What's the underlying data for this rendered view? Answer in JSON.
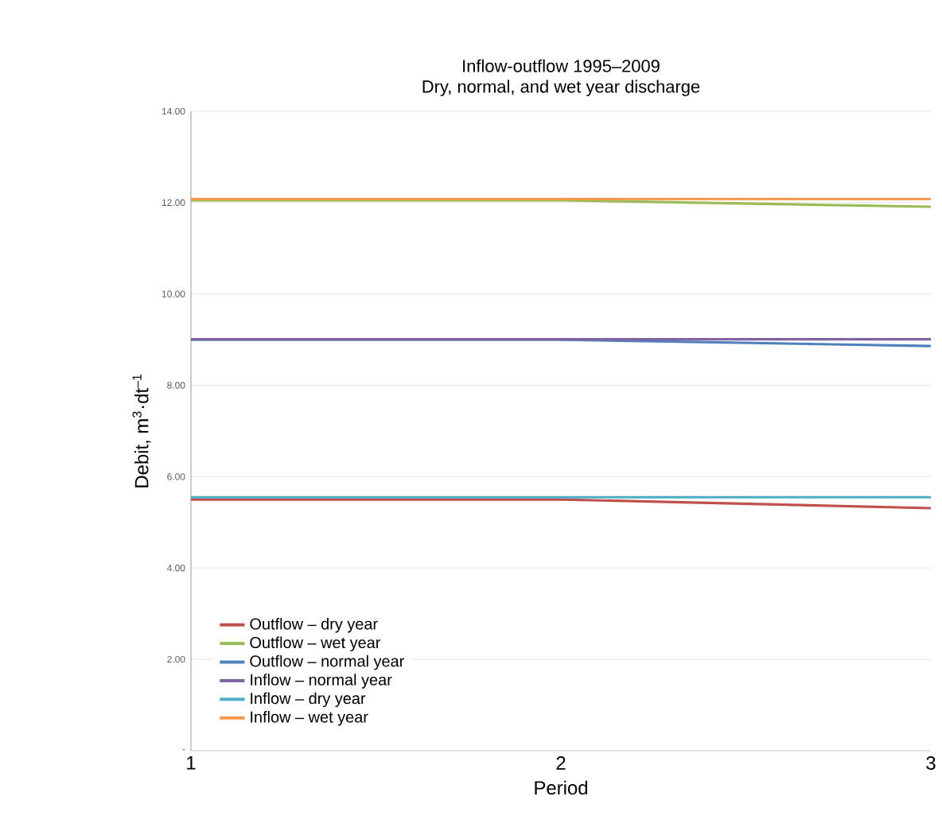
{
  "chart_data": {
    "type": "line",
    "title": "Inflow-outflow 1995–2009",
    "subtitle": "Dry, normal, and wet year discharge",
    "xlabel": "Period",
    "ylabel": "Debit, m$^{3}$·dt$^{–1}$",
    "x": [
      1,
      2,
      3
    ],
    "xlim": [
      1,
      3
    ],
    "xticks": [
      1,
      2,
      3
    ],
    "ylim": [
      0,
      14
    ],
    "yticks": [
      {
        "value": 0,
        "label": "-"
      },
      {
        "value": 2,
        "label": "2.00"
      },
      {
        "value": 4,
        "label": "4.00"
      },
      {
        "value": 6,
        "label": "6.00"
      },
      {
        "value": 8,
        "label": "8.00"
      },
      {
        "value": 10,
        "label": "10.00"
      },
      {
        "value": 12,
        "label": "12.00"
      },
      {
        "value": 14,
        "label": "14.00"
      }
    ],
    "grid": "y",
    "legend": "bottom left",
    "marker": "none",
    "line_style": "solid",
    "series": [
      {
        "name": "Outflow – dry year",
        "color": "#c0504d",
        "values": [
          5.5,
          5.5,
          5.31
        ]
      },
      {
        "name": "Outflow – wet year",
        "color": "#9bbb59",
        "values": [
          12.05,
          12.05,
          11.91
        ]
      },
      {
        "name": "Outflow – normal year",
        "color": "#4f81bd",
        "values": [
          9.0,
          9.0,
          8.86
        ]
      },
      {
        "name": "Inflow – normal year",
        "color": "#8064a2",
        "values": [
          9.01,
          9.01,
          9.01
        ]
      },
      {
        "name": "Inflow – dry year",
        "color": "#4bacc6",
        "values": [
          5.55,
          5.55,
          5.55
        ]
      },
      {
        "name": "Inflow – wet year",
        "color": "#f79646",
        "values": [
          12.08,
          12.08,
          12.08
        ]
      }
    ]
  }
}
